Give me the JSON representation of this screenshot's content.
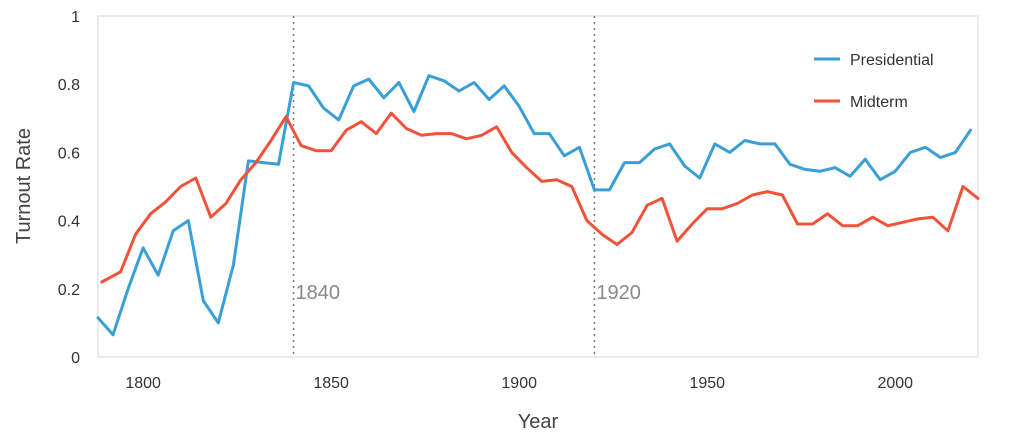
{
  "chart_data": {
    "type": "line",
    "xlabel": "Year",
    "ylabel": "Turnout Rate",
    "xlim": [
      1788,
      2022
    ],
    "ylim": [
      0,
      1
    ],
    "xticks": [
      1800,
      1850,
      1900,
      1950,
      2000
    ],
    "yticks": [
      {
        "value": 0,
        "label": "0"
      },
      {
        "value": 0.2,
        "label": "0.2"
      },
      {
        "value": 0.4,
        "label": "0.4"
      },
      {
        "value": 0.6,
        "label": "0.6"
      },
      {
        "value": 0.8,
        "label": "0.8"
      },
      {
        "value": 1,
        "label": "1"
      }
    ],
    "grid": false,
    "legend_position": "top-right",
    "annotations": [
      {
        "x": 1840,
        "label": "1840"
      },
      {
        "x": 1920,
        "label": "1920"
      }
    ],
    "series": [
      {
        "name": "Presidential",
        "color": "#3a9fd6",
        "x": [
          1788,
          1792,
          1796,
          1800,
          1804,
          1808,
          1812,
          1816,
          1820,
          1824,
          1828,
          1832,
          1836,
          1840,
          1844,
          1848,
          1852,
          1856,
          1860,
          1864,
          1868,
          1872,
          1876,
          1880,
          1884,
          1888,
          1892,
          1896,
          1900,
          1904,
          1908,
          1912,
          1916,
          1920,
          1924,
          1928,
          1932,
          1936,
          1940,
          1944,
          1948,
          1952,
          1956,
          1960,
          1964,
          1968,
          1972,
          1976,
          1980,
          1984,
          1988,
          1992,
          1996,
          2000,
          2004,
          2008,
          2012,
          2016,
          2020
        ],
        "values": [
          0.115,
          0.065,
          0.2,
          0.32,
          0.24,
          0.37,
          0.4,
          0.165,
          0.1,
          0.27,
          0.575,
          0.57,
          0.565,
          0.805,
          0.795,
          0.73,
          0.695,
          0.795,
          0.815,
          0.76,
          0.805,
          0.72,
          0.825,
          0.81,
          0.78,
          0.805,
          0.755,
          0.795,
          0.735,
          0.655,
          0.655,
          0.59,
          0.615,
          0.49,
          0.49,
          0.57,
          0.57,
          0.61,
          0.625,
          0.56,
          0.525,
          0.625,
          0.6,
          0.635,
          0.625,
          0.625,
          0.565,
          0.55,
          0.545,
          0.555,
          0.53,
          0.58,
          0.52,
          0.545,
          0.6,
          0.615,
          0.585,
          0.6,
          0.665
        ]
      },
      {
        "name": "Midterm",
        "color": "#f0533a",
        "x": [
          1789,
          1794,
          1798,
          1802,
          1806,
          1810,
          1814,
          1818,
          1822,
          1826,
          1830,
          1834,
          1838,
          1842,
          1846,
          1850,
          1854,
          1858,
          1862,
          1866,
          1870,
          1874,
          1878,
          1882,
          1886,
          1890,
          1894,
          1898,
          1902,
          1906,
          1910,
          1914,
          1918,
          1922,
          1926,
          1930,
          1934,
          1938,
          1942,
          1946,
          1950,
          1954,
          1958,
          1962,
          1966,
          1970,
          1974,
          1978,
          1982,
          1986,
          1990,
          1994,
          1998,
          2002,
          2006,
          2010,
          2014,
          2018,
          2022
        ],
        "values": [
          0.22,
          0.25,
          0.36,
          0.42,
          0.455,
          0.5,
          0.525,
          0.41,
          0.45,
          0.52,
          0.57,
          0.635,
          0.705,
          0.62,
          0.605,
          0.605,
          0.665,
          0.69,
          0.655,
          0.715,
          0.67,
          0.65,
          0.655,
          0.655,
          0.64,
          0.65,
          0.675,
          0.6,
          0.555,
          0.515,
          0.52,
          0.5,
          0.4,
          0.36,
          0.33,
          0.365,
          0.445,
          0.465,
          0.34,
          0.39,
          0.435,
          0.435,
          0.45,
          0.475,
          0.485,
          0.475,
          0.39,
          0.39,
          0.42,
          0.385,
          0.385,
          0.41,
          0.385,
          0.395,
          0.405,
          0.41,
          0.37,
          0.5,
          0.465
        ]
      }
    ]
  }
}
